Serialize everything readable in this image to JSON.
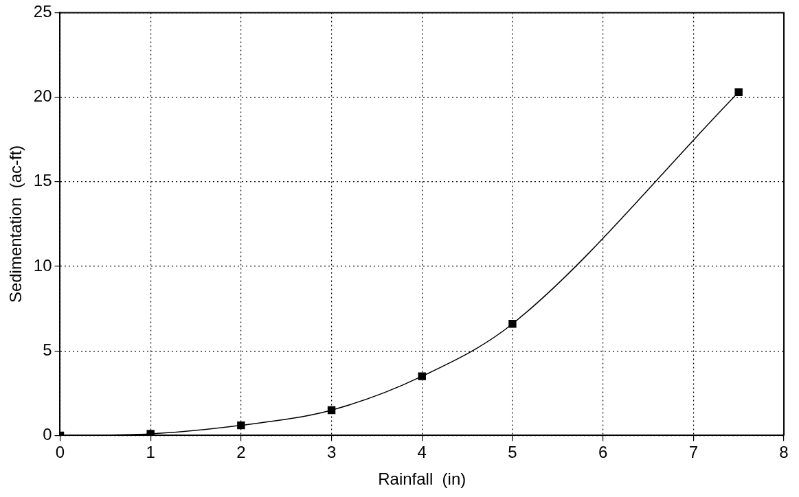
{
  "chart_data": {
    "type": "line",
    "xlabel": "Rainfall  (in)",
    "ylabel": "Sedimentation  (ac-ft)",
    "x": [
      0,
      1,
      2,
      3,
      4,
      5,
      7.5
    ],
    "series": [
      {
        "color": "#000000",
        "values": [
          0,
          0.1,
          0.6,
          1.5,
          3.5,
          6.6,
          20.3
        ]
      }
    ],
    "xlim": [
      0,
      8
    ],
    "xticks": [
      0,
      1,
      2,
      3,
      4,
      5,
      6,
      7,
      8
    ],
    "ylim": [
      0,
      25
    ],
    "yticks": [
      0,
      5,
      10,
      15,
      20,
      25
    ],
    "grid": true,
    "legend": false,
    "marker": "square",
    "line_style": "solid"
  }
}
